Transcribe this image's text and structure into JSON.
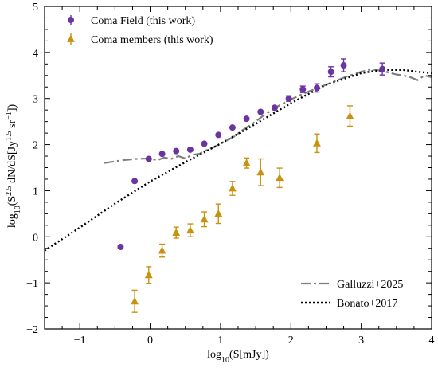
{
  "chart_data": {
    "type": "scatter",
    "xlabel_parts": {
      "prefix": "log",
      "sub": "10",
      "body": "(S[mJy])"
    },
    "ylabel_parts": {
      "prefix": "log",
      "sub": "10",
      "body1": "(S",
      "sup1": "2.5",
      "body2": " dN/dS[Jy",
      "sup2": "1.5",
      "body3": " sr",
      "sup3": "−1",
      "body4": "])"
    },
    "xlim": [
      -1.5,
      4
    ],
    "ylim": [
      -2,
      5
    ],
    "x_ticks": [
      -1,
      0,
      1,
      2,
      3,
      4
    ],
    "x_tick_labels": [
      "−1",
      "0",
      "1",
      "2",
      "3",
      "4"
    ],
    "y_ticks": [
      -2,
      -1,
      0,
      1,
      2,
      3,
      4,
      5
    ],
    "y_tick_labels": [
      "−2",
      "−1",
      "0",
      "1",
      "2",
      "3",
      "4",
      "5"
    ],
    "grid": false,
    "legend_top": {
      "placement": "top-left"
    },
    "legend_bottom": {
      "placement": "bottom-right"
    },
    "series": [
      {
        "name": "Coma Field (this work)",
        "marker": "circle",
        "color": "#6a35a1",
        "points": [
          {
            "x": -0.42,
            "y": -0.22,
            "err": 0
          },
          {
            "x": -0.22,
            "y": 1.21,
            "err": 0
          },
          {
            "x": -0.02,
            "y": 1.69,
            "err": 0
          },
          {
            "x": 0.17,
            "y": 1.8,
            "err": 0
          },
          {
            "x": 0.37,
            "y": 1.86,
            "err": 0
          },
          {
            "x": 0.57,
            "y": 1.89,
            "err": 0
          },
          {
            "x": 0.77,
            "y": 2.02,
            "err": 0
          },
          {
            "x": 0.97,
            "y": 2.21,
            "err": 0
          },
          {
            "x": 1.17,
            "y": 2.37,
            "err": 0
          },
          {
            "x": 1.37,
            "y": 2.56,
            "err": 0
          },
          {
            "x": 1.57,
            "y": 2.71,
            "err": 0
          },
          {
            "x": 1.77,
            "y": 2.8,
            "err": 0
          },
          {
            "x": 1.97,
            "y": 3.0,
            "err": 0.06
          },
          {
            "x": 2.17,
            "y": 3.2,
            "err": 0.07
          },
          {
            "x": 2.37,
            "y": 3.23,
            "err": 0.09
          },
          {
            "x": 2.57,
            "y": 3.58,
            "err": 0.11
          },
          {
            "x": 2.75,
            "y": 3.72,
            "err": 0.14
          },
          {
            "x": 3.3,
            "y": 3.64,
            "err": 0.13
          }
        ]
      },
      {
        "name": "Coma members (this work)",
        "marker": "triangle",
        "color": "#c8920e",
        "points": [
          {
            "x": -0.22,
            "y": -1.4,
            "err": 0.24
          },
          {
            "x": -0.02,
            "y": -0.83,
            "err": 0.18
          },
          {
            "x": 0.17,
            "y": -0.3,
            "err": 0.14
          },
          {
            "x": 0.37,
            "y": 0.09,
            "err": 0.12
          },
          {
            "x": 0.57,
            "y": 0.14,
            "err": 0.14
          },
          {
            "x": 0.77,
            "y": 0.38,
            "err": 0.16
          },
          {
            "x": 0.97,
            "y": 0.5,
            "err": 0.21
          },
          {
            "x": 1.17,
            "y": 1.05,
            "err": 0.15
          },
          {
            "x": 1.37,
            "y": 1.6,
            "err": 0.11
          },
          {
            "x": 1.57,
            "y": 1.4,
            "err": 0.29
          },
          {
            "x": 1.84,
            "y": 1.28,
            "err": 0.21
          },
          {
            "x": 2.37,
            "y": 2.03,
            "err": 0.2
          },
          {
            "x": 2.84,
            "y": 2.62,
            "err": 0.22
          }
        ]
      }
    ],
    "lines": [
      {
        "name": "Galluzzi+2025",
        "style": "dashdot",
        "color": "#7f7f7f",
        "points": [
          [
            -0.65,
            1.6
          ],
          [
            -0.4,
            1.66
          ],
          [
            -0.2,
            1.69
          ],
          [
            0.0,
            1.7
          ],
          [
            0.1,
            1.66
          ],
          [
            0.2,
            1.72
          ],
          [
            0.3,
            1.69
          ],
          [
            0.4,
            1.75
          ],
          [
            0.5,
            1.7
          ],
          [
            0.6,
            1.78
          ],
          [
            0.7,
            1.8
          ],
          [
            0.8,
            1.88
          ],
          [
            0.9,
            1.94
          ],
          [
            1.0,
            2.02
          ],
          [
            1.1,
            2.1
          ],
          [
            1.2,
            2.18
          ],
          [
            1.3,
            2.3
          ],
          [
            1.4,
            2.4
          ],
          [
            1.5,
            2.5
          ],
          [
            1.6,
            2.62
          ],
          [
            1.7,
            2.72
          ],
          [
            1.8,
            2.82
          ],
          [
            1.9,
            2.9
          ],
          [
            2.0,
            2.98
          ],
          [
            2.1,
            3.05
          ],
          [
            2.2,
            3.12
          ],
          [
            2.3,
            3.18
          ],
          [
            2.4,
            3.24
          ],
          [
            2.5,
            3.3
          ],
          [
            2.6,
            3.36
          ],
          [
            2.7,
            3.42
          ],
          [
            2.8,
            3.48
          ],
          [
            2.9,
            3.53
          ],
          [
            3.0,
            3.58
          ],
          [
            3.1,
            3.62
          ],
          [
            3.2,
            3.62
          ],
          [
            3.3,
            3.6
          ],
          [
            3.4,
            3.56
          ],
          [
            3.5,
            3.52
          ],
          [
            3.6,
            3.5
          ],
          [
            3.7,
            3.46
          ],
          [
            3.8,
            3.4
          ],
          [
            3.9,
            3.5
          ],
          [
            4.0,
            3.46
          ]
        ]
      },
      {
        "name": "Bonato+2017",
        "style": "dotted",
        "color": "#000000",
        "points": [
          [
            -1.5,
            -0.3
          ],
          [
            -1.0,
            0.2
          ],
          [
            -0.5,
            0.72
          ],
          [
            0.0,
            1.2
          ],
          [
            0.5,
            1.62
          ],
          [
            1.0,
            2.02
          ],
          [
            1.5,
            2.45
          ],
          [
            2.0,
            2.9
          ],
          [
            2.5,
            3.3
          ],
          [
            3.0,
            3.55
          ],
          [
            3.2,
            3.6
          ],
          [
            3.4,
            3.62
          ],
          [
            3.6,
            3.62
          ],
          [
            3.8,
            3.58
          ],
          [
            4.0,
            3.55
          ]
        ]
      }
    ]
  }
}
